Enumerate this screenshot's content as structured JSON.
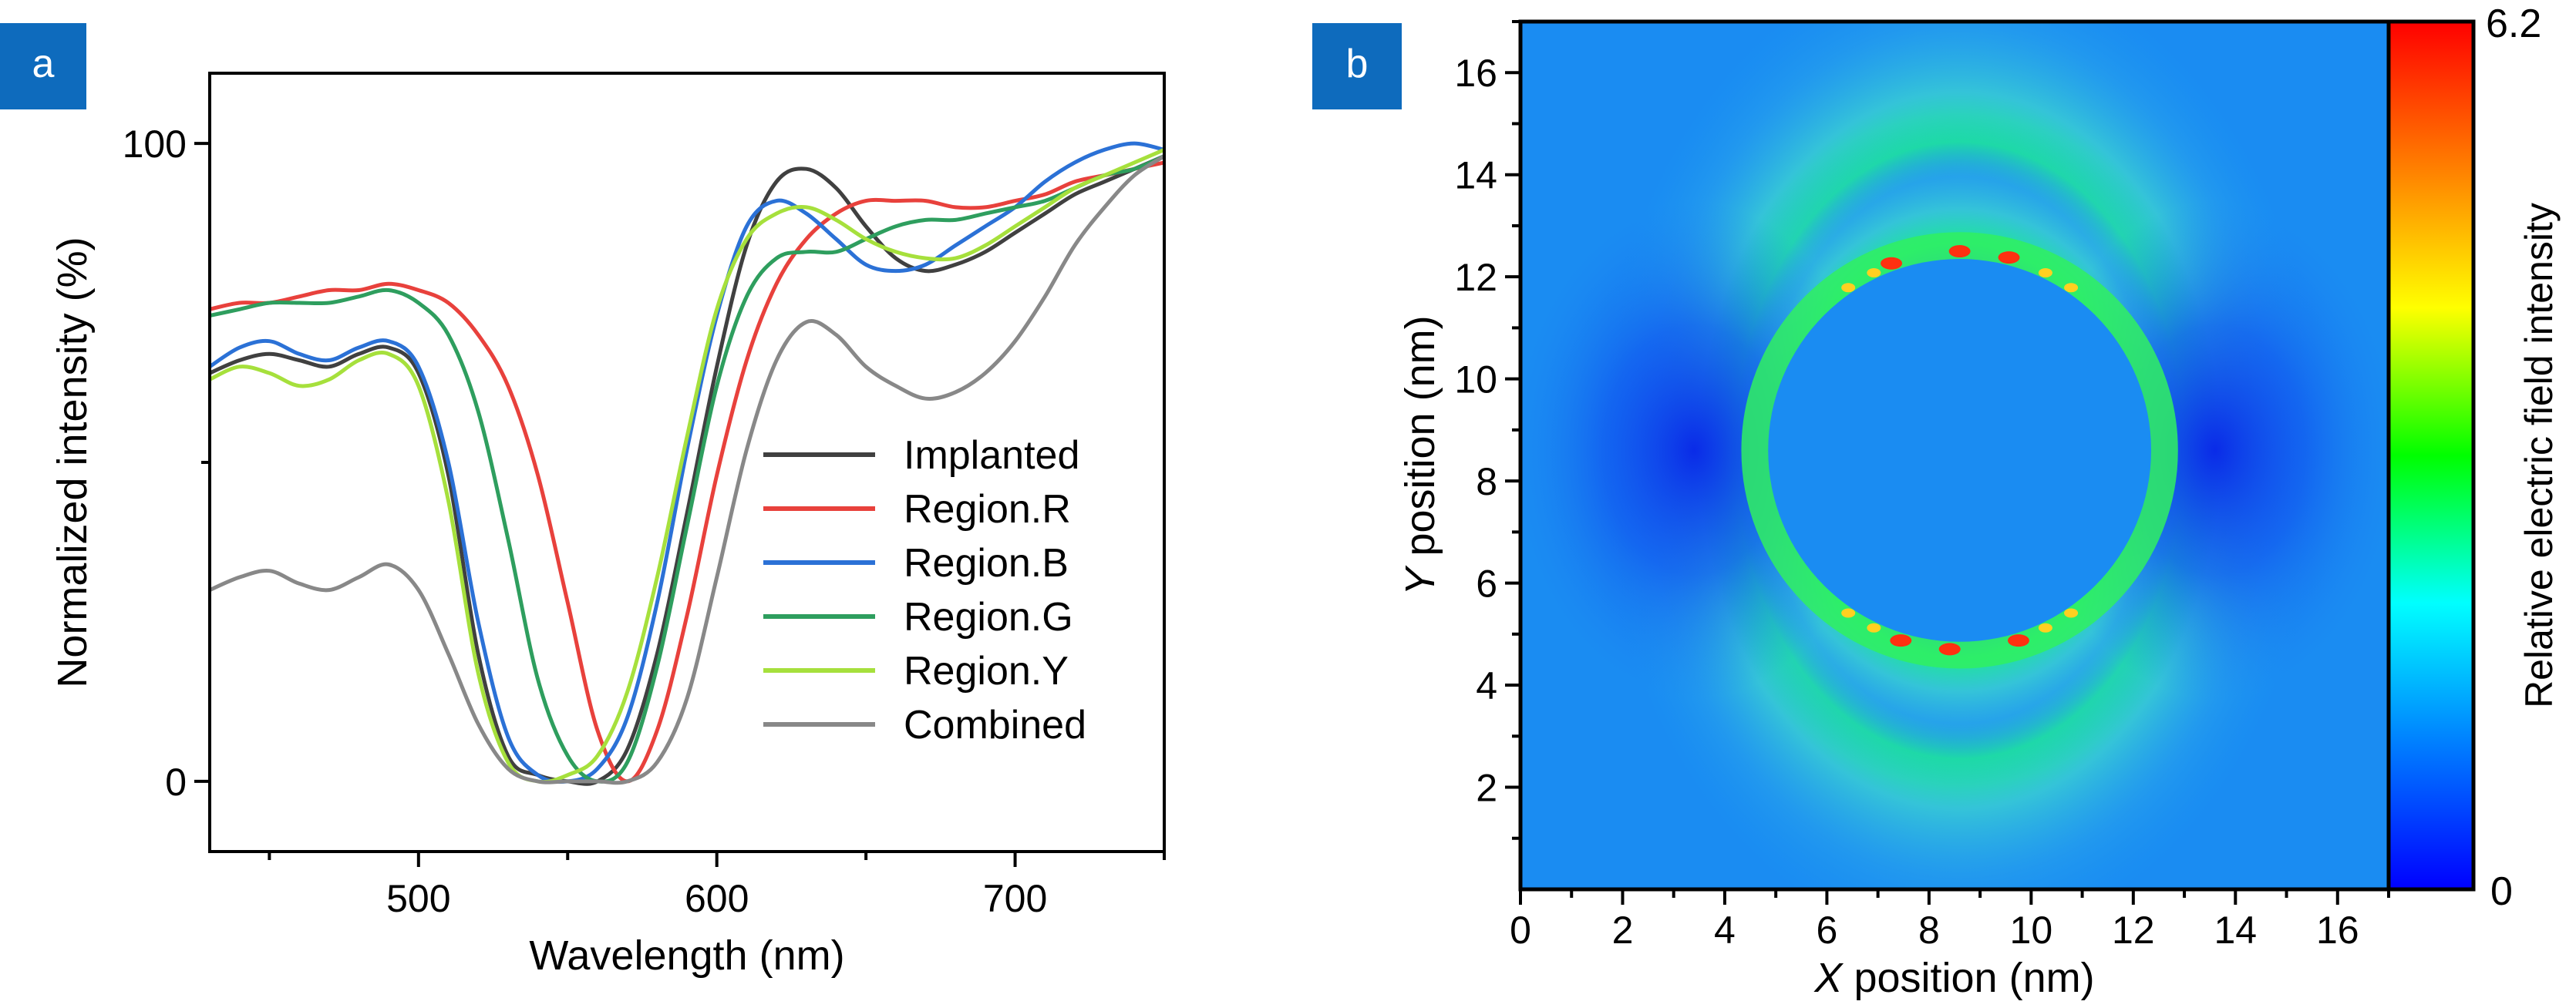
{
  "chart_data": [
    {
      "panel": "a",
      "type": "line",
      "xlabel": "Wavelength (nm)",
      "ylabel": "Normalized intensity (%)",
      "xlim": [
        430,
        750
      ],
      "ylim": [
        -11,
        111
      ],
      "xticks": [
        "500",
        "600",
        "700"
      ],
      "xtick_values": [
        500,
        600,
        700
      ],
      "yticks": [
        "0",
        "100"
      ],
      "ytick_values": [
        0,
        100
      ],
      "legend_position": "right",
      "series": [
        {
          "name": "Implanted",
          "color": "#404040",
          "x": [
            430,
            440,
            450,
            460,
            470,
            480,
            490,
            500,
            510,
            520,
            530,
            540,
            550,
            560,
            570,
            580,
            590,
            600,
            610,
            620,
            630,
            640,
            650,
            660,
            670,
            680,
            690,
            700,
            710,
            720,
            730,
            740,
            750
          ],
          "y": [
            64,
            66,
            67,
            66,
            65,
            67,
            68,
            64,
            48,
            20,
            4,
            1,
            0,
            0,
            5,
            20,
            42,
            65,
            84,
            94,
            96,
            93,
            87,
            82,
            80,
            81,
            83,
            86,
            89,
            92,
            94,
            96,
            98
          ]
        },
        {
          "name": "Region.R",
          "color": "#e8413c",
          "x": [
            430,
            440,
            450,
            460,
            470,
            480,
            490,
            500,
            510,
            520,
            530,
            540,
            550,
            560,
            570,
            580,
            590,
            600,
            610,
            620,
            630,
            640,
            650,
            660,
            670,
            680,
            690,
            700,
            710,
            720,
            730,
            740,
            750
          ],
          "y": [
            74,
            75,
            75,
            76,
            77,
            77,
            78,
            77,
            75,
            70,
            62,
            48,
            28,
            8,
            0,
            8,
            26,
            48,
            66,
            78,
            85,
            89,
            91,
            91,
            91,
            90,
            90,
            91,
            92,
            94,
            95,
            96,
            97
          ]
        },
        {
          "name": "Region.B",
          "color": "#2b71d6",
          "x": [
            430,
            440,
            450,
            460,
            470,
            480,
            490,
            500,
            510,
            520,
            530,
            540,
            550,
            560,
            570,
            580,
            590,
            600,
            610,
            620,
            630,
            640,
            650,
            660,
            670,
            680,
            690,
            700,
            710,
            720,
            730,
            740,
            750
          ],
          "y": [
            65,
            68,
            69,
            67,
            66,
            68,
            69,
            65,
            50,
            25,
            7,
            1,
            0,
            2,
            10,
            28,
            52,
            73,
            87,
            91,
            89,
            85,
            81,
            80,
            81,
            84,
            87,
            90,
            94,
            97,
            99,
            100,
            99
          ]
        },
        {
          "name": "Region.G",
          "color": "#2e9e5e",
          "x": [
            430,
            440,
            450,
            460,
            470,
            480,
            490,
            500,
            510,
            520,
            530,
            540,
            550,
            560,
            570,
            580,
            590,
            600,
            610,
            620,
            630,
            640,
            650,
            660,
            670,
            680,
            690,
            700,
            710,
            720,
            730,
            740,
            750
          ],
          "y": [
            73,
            74,
            75,
            75,
            75,
            76,
            77,
            75,
            70,
            58,
            38,
            16,
            4,
            0,
            3,
            18,
            40,
            62,
            76,
            82,
            83,
            83,
            85,
            87,
            88,
            88,
            89,
            90,
            91,
            93,
            95,
            96,
            98
          ]
        },
        {
          "name": "Region.Y",
          "color": "#a6e03c",
          "x": [
            430,
            440,
            450,
            460,
            470,
            480,
            490,
            500,
            510,
            520,
            530,
            540,
            550,
            560,
            570,
            580,
            590,
            600,
            610,
            620,
            630,
            640,
            650,
            660,
            670,
            680,
            690,
            700,
            710,
            720,
            730,
            740,
            750
          ],
          "y": [
            63,
            65,
            64,
            62,
            63,
            66,
            67,
            62,
            44,
            17,
            3,
            0,
            1,
            4,
            14,
            32,
            54,
            74,
            85,
            89,
            90,
            88,
            85,
            83,
            82,
            82,
            84,
            87,
            90,
            93,
            95,
            97,
            99
          ]
        },
        {
          "name": "Combined",
          "color": "#888888",
          "x": [
            430,
            440,
            450,
            460,
            470,
            480,
            490,
            500,
            510,
            520,
            530,
            540,
            550,
            560,
            570,
            580,
            590,
            600,
            610,
            620,
            630,
            640,
            650,
            660,
            670,
            680,
            690,
            700,
            710,
            720,
            730,
            740,
            750
          ],
          "y": [
            30,
            32,
            33,
            31,
            30,
            32,
            34,
            30,
            20,
            9,
            2,
            0,
            0,
            0,
            0,
            3,
            13,
            32,
            52,
            66,
            72,
            70,
            65,
            62,
            60,
            61,
            64,
            69,
            76,
            84,
            90,
            95,
            98
          ]
        }
      ]
    },
    {
      "panel": "b",
      "type": "heatmap",
      "xlabel_var": "X",
      "xlabel_rest": " position (nm)",
      "ylabel_var": "Y",
      "ylabel_rest": " position (nm)",
      "xlim": [
        0,
        17
      ],
      "ylim": [
        0,
        17
      ],
      "xticks": [
        "0",
        "2",
        "4",
        "6",
        "8",
        "10",
        "12",
        "14",
        "16"
      ],
      "yticks": [
        "2",
        "4",
        "6",
        "8",
        "10",
        "12",
        "14",
        "16"
      ],
      "colorbar": {
        "label": "Relative electric field intensity",
        "min_label": "0",
        "max_label": "6.2",
        "min": 0,
        "max": 6.2,
        "colors": [
          "#0000ff",
          "#0080ff",
          "#00ffff",
          "#00ff00",
          "#ffff00",
          "#ff8000",
          "#ff0000"
        ]
      },
      "features": {
        "particle_center": [
          8.6,
          8.6
        ],
        "particle_radius_nm": 3.75,
        "background_level": 1.0,
        "hotspot_max": 6.2
      }
    }
  ],
  "badges": {
    "a": "a",
    "b": "b",
    "color": "#0e6bbd"
  }
}
